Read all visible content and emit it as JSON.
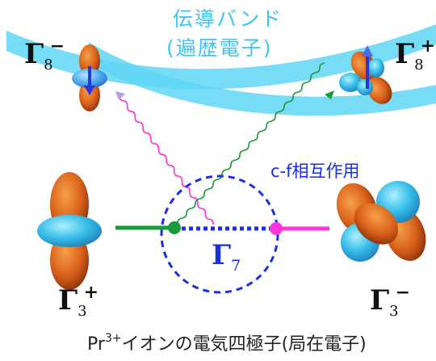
{
  "band_title_line1": "伝導バンド",
  "band_title_line2": "(遍歴電子)",
  "interaction_label": "c-f相互作用",
  "levels": {
    "g8m": {
      "symbol": "Γ",
      "sub": "8",
      "sup": "−"
    },
    "g8p": {
      "symbol": "Γ",
      "sub": "8",
      "sup": "+"
    },
    "g3p": {
      "symbol": "Γ",
      "sub": "3",
      "sup": "+"
    },
    "g3m": {
      "symbol": "Γ",
      "sub": "3",
      "sup": "−"
    },
    "g7": {
      "symbol": "Γ",
      "sub": "7"
    }
  },
  "caption": {
    "prefix": "Pr",
    "sup": "3+",
    "rest": "イオンの電気四極子(局在電子)"
  },
  "colors": {
    "band": "#5fd6f5",
    "green": "#1a9a3a",
    "magenta": "#ff33dd",
    "blue": "#1a2ee6",
    "orbital_lobe": "#d9661e",
    "orbital_ring": "#3cc6f0"
  }
}
